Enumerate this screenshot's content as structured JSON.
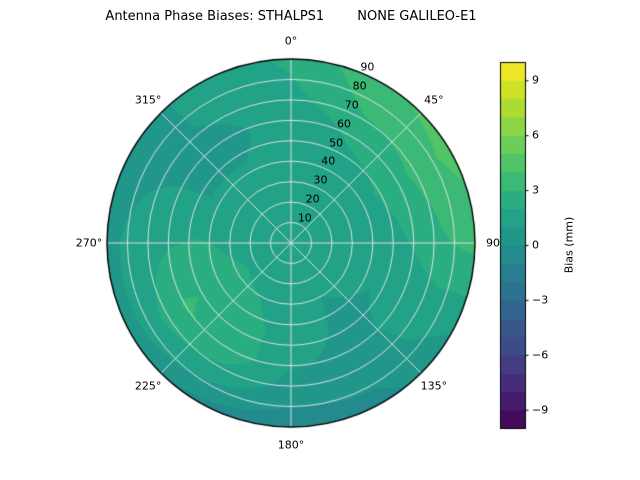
{
  "chart_data": {
    "type": "heatmap",
    "projection": "polar",
    "title": "Antenna Phase Biases: STHALPS1        NONE GALILEO-E1",
    "theta_ticks": [
      {
        "deg": 0,
        "label": "0°"
      },
      {
        "deg": 45,
        "label": "45°"
      },
      {
        "deg": 90,
        "label": "90"
      },
      {
        "deg": 135,
        "label": "135°"
      },
      {
        "deg": 180,
        "label": "180°"
      },
      {
        "deg": 225,
        "label": "225°"
      },
      {
        "deg": 270,
        "label": "270°"
      },
      {
        "deg": 315,
        "label": "315°"
      }
    ],
    "r_ticks": [
      10,
      20,
      30,
      40,
      50,
      60,
      70,
      80,
      90
    ],
    "r_max": 90,
    "grid": true,
    "azimuth_deg": [
      0,
      30,
      60,
      90,
      120,
      150,
      180,
      210,
      240,
      270,
      300,
      330,
      360
    ],
    "zenith_deg": [
      0,
      15,
      30,
      45,
      60,
      75,
      90
    ],
    "bias_mm": [
      [
        1.6,
        1.5,
        1.3,
        1.1,
        1.2,
        1.8,
        2.2
      ],
      [
        1.6,
        1.6,
        1.5,
        1.6,
        2.2,
        3.2,
        3.8
      ],
      [
        1.6,
        1.6,
        1.6,
        1.9,
        2.6,
        3.6,
        4.4
      ],
      [
        1.6,
        1.5,
        1.3,
        1.5,
        2.1,
        2.9,
        3.3
      ],
      [
        1.6,
        1.3,
        1.1,
        1.0,
        1.2,
        1.3,
        1.0
      ],
      [
        1.6,
        1.3,
        1.0,
        0.9,
        0.8,
        0.4,
        -0.4
      ],
      [
        1.6,
        1.4,
        1.3,
        1.4,
        1.1,
        0.4,
        -0.8
      ],
      [
        1.6,
        1.6,
        2.0,
        2.5,
        2.7,
        1.4,
        -0.3
      ],
      [
        1.6,
        1.7,
        2.2,
        2.9,
        3.1,
        1.9,
        0.4
      ],
      [
        1.6,
        1.6,
        1.8,
        2.1,
        1.9,
        1.3,
        0.8
      ],
      [
        1.6,
        1.4,
        1.2,
        1.0,
        0.9,
        0.8,
        0.5
      ],
      [
        1.6,
        1.4,
        1.2,
        1.0,
        0.9,
        1.1,
        1.3
      ],
      [
        1.6,
        1.5,
        1.3,
        1.1,
        1.2,
        1.8,
        2.2
      ]
    ],
    "colorbar": {
      "label": "Bias (mm)",
      "ticks": [
        9,
        6,
        3,
        0,
        -3,
        -6,
        -9
      ],
      "vmin": -10,
      "vmax": 10,
      "levels_step": 1,
      "colormap": "viridis",
      "colormap_stops": [
        [
          0.0,
          "#440154"
        ],
        [
          0.1,
          "#482475"
        ],
        [
          0.2,
          "#414487"
        ],
        [
          0.3,
          "#355f8d"
        ],
        [
          0.4,
          "#2a788e"
        ],
        [
          0.5,
          "#21918c"
        ],
        [
          0.6,
          "#22a884"
        ],
        [
          0.7,
          "#44bf70"
        ],
        [
          0.8,
          "#7ad151"
        ],
        [
          0.9,
          "#bddf26"
        ],
        [
          1.0,
          "#fde725"
        ]
      ]
    }
  }
}
